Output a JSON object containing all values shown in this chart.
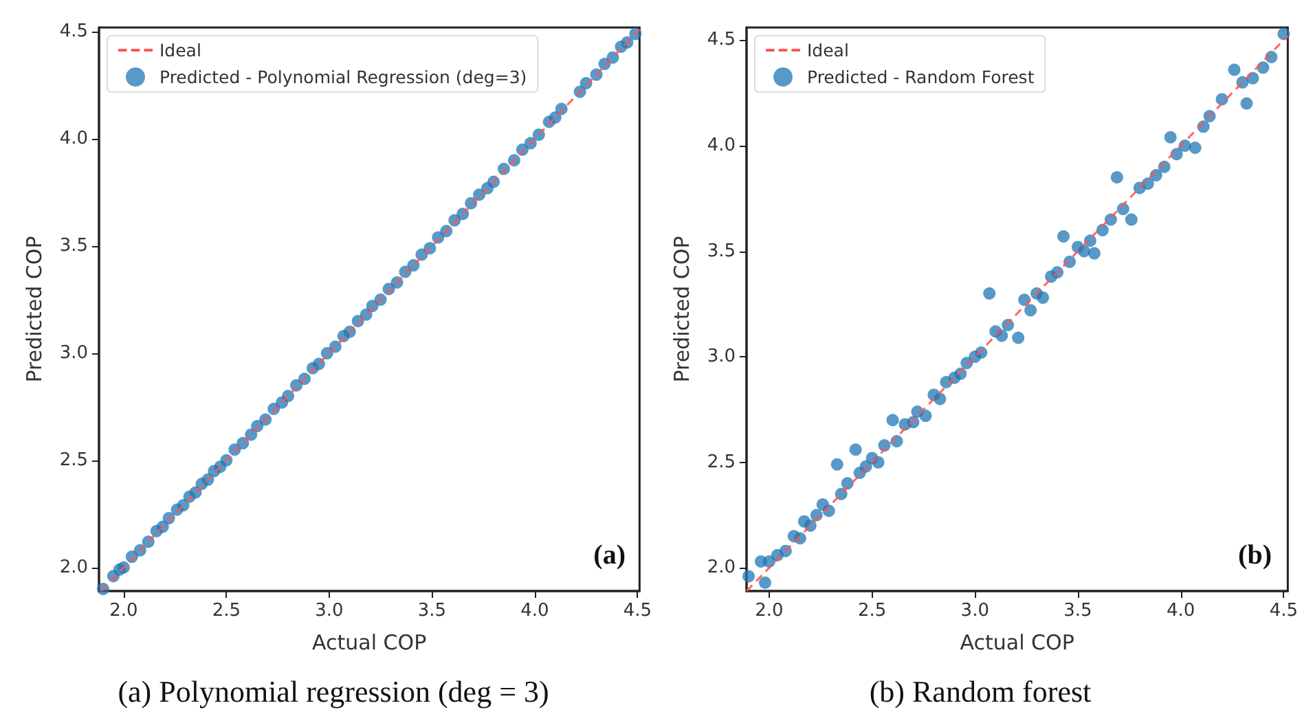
{
  "chart_data": [
    {
      "type": "scatter",
      "xlabel": "Actual COP",
      "ylabel": "Predicted COP",
      "xlim": [
        1.88,
        4.51
      ],
      "ylim": [
        1.89,
        4.52
      ],
      "xticks": [
        {
          "value": 2,
          "label": "2.0"
        },
        2.5,
        {
          "value": 3,
          "label": "3.0"
        },
        3.5,
        {
          "value": 4,
          "label": "4.0"
        },
        4.5
      ],
      "yticks": [
        {
          "value": 2,
          "label": "2.0"
        },
        2.5,
        {
          "value": 3,
          "label": "3.0"
        },
        3.5,
        {
          "value": 4,
          "label": "4.0"
        },
        4.5
      ],
      "grid": false,
      "legend": "top left",
      "marker": "circle",
      "annotations": [
        "(a)",
        "(a) Polynomial regression (deg = 3)"
      ],
      "series": [
        {
          "name": "Ideal",
          "type": "line",
          "color": "#ff5555",
          "line_style": "dashed",
          "marker": "none",
          "x": [
            1.89,
            4.51
          ],
          "values": [
            1.89,
            4.51
          ]
        },
        {
          "name": "Predicted - Polynomial Regression (deg=3)",
          "color": "#1f77b4",
          "x": [
            1.9,
            1.95,
            1.98,
            2.0,
            2.04,
            2.08,
            2.12,
            2.16,
            2.19,
            2.22,
            2.26,
            2.29,
            2.32,
            2.35,
            2.38,
            2.41,
            2.44,
            2.47,
            2.5,
            2.54,
            2.58,
            2.62,
            2.65,
            2.69,
            2.73,
            2.77,
            2.8,
            2.84,
            2.88,
            2.92,
            2.95,
            2.99,
            3.03,
            3.07,
            3.1,
            3.14,
            3.18,
            3.21,
            3.25,
            3.29,
            3.33,
            3.37,
            3.41,
            3.45,
            3.49,
            3.53,
            3.57,
            3.61,
            3.65,
            3.69,
            3.73,
            3.77,
            3.8,
            3.85,
            3.9,
            3.94,
            3.98,
            4.02,
            4.07,
            4.1,
            4.13,
            4.22,
            4.25,
            4.3,
            4.34,
            4.38,
            4.42,
            4.45,
            4.49
          ],
          "values": [
            1.9,
            1.96,
            1.99,
            2.0,
            2.05,
            2.08,
            2.12,
            2.17,
            2.19,
            2.23,
            2.27,
            2.29,
            2.33,
            2.35,
            2.39,
            2.41,
            2.45,
            2.47,
            2.5,
            2.55,
            2.58,
            2.62,
            2.66,
            2.69,
            2.74,
            2.77,
            2.8,
            2.85,
            2.88,
            2.93,
            2.95,
            3.0,
            3.03,
            3.08,
            3.1,
            3.15,
            3.18,
            3.22,
            3.25,
            3.3,
            3.33,
            3.38,
            3.41,
            3.46,
            3.49,
            3.54,
            3.57,
            3.62,
            3.65,
            3.7,
            3.74,
            3.77,
            3.8,
            3.86,
            3.9,
            3.95,
            3.98,
            4.02,
            4.08,
            4.1,
            4.14,
            4.22,
            4.26,
            4.3,
            4.35,
            4.38,
            4.43,
            4.45,
            4.49
          ]
        }
      ]
    },
    {
      "type": "scatter",
      "xlabel": "Actual COP",
      "ylabel": "Predicted COP",
      "xlim": [
        1.89,
        4.52
      ],
      "ylim": [
        1.89,
        4.56
      ],
      "xticks": [
        {
          "value": 2,
          "label": "2.0"
        },
        2.5,
        {
          "value": 3,
          "label": "3.0"
        },
        3.5,
        {
          "value": 4,
          "label": "4.0"
        },
        4.5
      ],
      "yticks": [
        {
          "value": 2,
          "label": "2.0"
        },
        2.5,
        {
          "value": 3,
          "label": "3.0"
        },
        3.5,
        {
          "value": 4,
          "label": "4.0"
        },
        4.5
      ],
      "grid": false,
      "legend": "top left",
      "marker": "circle",
      "annotations": [
        "(b)",
        "(b) Random forest"
      ],
      "series": [
        {
          "name": "Ideal",
          "type": "line",
          "color": "#ff5555",
          "line_style": "dashed",
          "marker": "none",
          "x": [
            1.89,
            4.52
          ],
          "values": [
            1.89,
            4.52
          ]
        },
        {
          "name": "Predicted - Random Forest",
          "color": "#1f77b4",
          "x": [
            1.9,
            1.96,
            1.98,
            2.0,
            2.04,
            2.08,
            2.12,
            2.15,
            2.17,
            2.2,
            2.23,
            2.26,
            2.29,
            2.33,
            2.35,
            2.38,
            2.42,
            2.44,
            2.47,
            2.5,
            2.53,
            2.56,
            2.6,
            2.62,
            2.66,
            2.7,
            2.72,
            2.76,
            2.8,
            2.83,
            2.86,
            2.9,
            2.93,
            2.96,
            3.0,
            3.03,
            3.07,
            3.1,
            3.13,
            3.16,
            3.21,
            3.24,
            3.27,
            3.3,
            3.33,
            3.37,
            3.4,
            3.43,
            3.46,
            3.5,
            3.53,
            3.56,
            3.58,
            3.62,
            3.66,
            3.69,
            3.72,
            3.76,
            3.8,
            3.84,
            3.88,
            3.92,
            3.95,
            3.98,
            4.02,
            4.07,
            4.11,
            4.14,
            4.2,
            4.26,
            4.3,
            4.32,
            4.35,
            4.4,
            4.44,
            4.5
          ],
          "values": [
            1.96,
            2.03,
            1.93,
            2.03,
            2.06,
            2.08,
            2.15,
            2.14,
            2.22,
            2.2,
            2.25,
            2.3,
            2.27,
            2.49,
            2.35,
            2.4,
            2.56,
            2.45,
            2.48,
            2.52,
            2.5,
            2.58,
            2.7,
            2.6,
            2.68,
            2.69,
            2.74,
            2.72,
            2.82,
            2.8,
            2.88,
            2.9,
            2.92,
            2.97,
            3.0,
            3.02,
            3.3,
            3.12,
            3.1,
            3.15,
            3.09,
            3.27,
            3.22,
            3.3,
            3.28,
            3.38,
            3.4,
            3.57,
            3.45,
            3.52,
            3.5,
            3.55,
            3.49,
            3.6,
            3.65,
            3.85,
            3.7,
            3.65,
            3.8,
            3.82,
            3.86,
            3.9,
            4.04,
            3.96,
            4.0,
            3.99,
            4.09,
            4.14,
            4.22,
            4.36,
            4.3,
            4.2,
            4.32,
            4.37,
            4.42,
            4.53
          ]
        }
      ]
    }
  ]
}
